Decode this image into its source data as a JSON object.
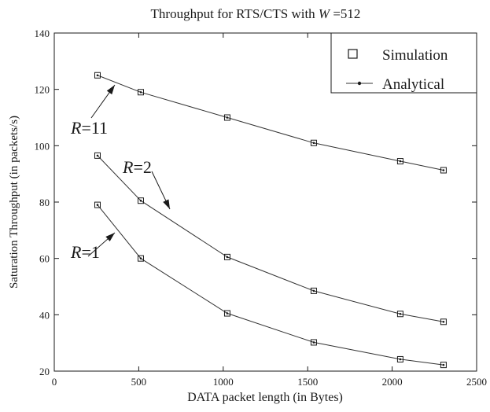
{
  "chart_data": {
    "type": "line",
    "title_prefix": "Throughput for RTS/CTS with ",
    "title_var": "W",
    "title_suffix": " =512",
    "xlabel": "DATA packet length (in Bytes)",
    "ylabel": "Saturation Throughput (in packets/s)",
    "xlim": [
      0,
      2500
    ],
    "ylim": [
      20,
      140
    ],
    "xticks": [
      0,
      500,
      1000,
      1500,
      2000,
      2500
    ],
    "yticks": [
      20,
      40,
      60,
      80,
      100,
      120,
      140
    ],
    "grid": false,
    "legend_position": "top-right",
    "legend": [
      {
        "label": "Simulation",
        "marker": "square"
      },
      {
        "label": "Analytical",
        "marker": "line-dot"
      }
    ],
    "x": [
      256,
      512,
      1024,
      1536,
      2048,
      2304
    ],
    "series": [
      {
        "values": [
          125,
          119,
          110,
          101,
          94.5,
          91.3
        ]
      },
      {
        "values": [
          96.5,
          80.5,
          60.5,
          48.5,
          40.3,
          37.5
        ]
      },
      {
        "values": [
          79,
          60,
          40.5,
          30.2,
          24.2,
          22.2
        ]
      }
    ],
    "annotations": [
      {
        "var": "R",
        "text": "=11",
        "x": 300,
        "y": 122
      },
      {
        "var": "R",
        "text": "=2",
        "x": 600,
        "y": 91
      },
      {
        "var": "R",
        "text": "=1",
        "x": 280,
        "y": 68
      }
    ]
  }
}
